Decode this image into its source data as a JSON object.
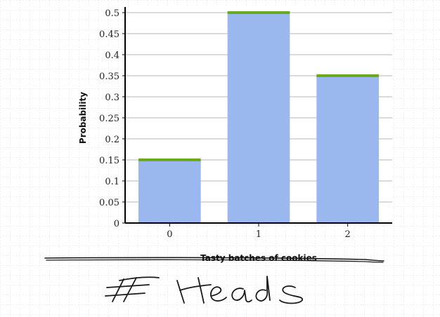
{
  "chart_data": {
    "type": "bar",
    "categories": [
      "0",
      "1",
      "2"
    ],
    "values": [
      0.15,
      0.5,
      0.35
    ],
    "title": "",
    "xlabel": "Tasty batches of cookies",
    "ylabel": "Probability",
    "ylim": [
      0,
      0.5
    ],
    "yticks": [
      "0",
      "0.05",
      "0.1",
      "0.15",
      "0.2",
      "0.25",
      "0.3",
      "0.35",
      "0.4",
      "0.45",
      "0.5"
    ],
    "grid": true,
    "colors": {
      "bar_fill": "#9ab8ee",
      "bar_top": "#6aaa1e",
      "grid": "#cfcfcf",
      "axis": "#000000",
      "background_grid": "#dde4ee",
      "ink": "#1a1a1a"
    }
  },
  "annotation": {
    "handwritten_text": "# Heads"
  }
}
